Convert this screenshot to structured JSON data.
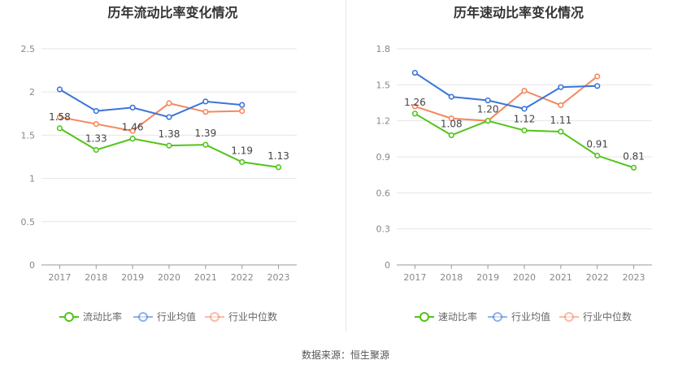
{
  "source_text": "数据来源：恒生聚源",
  "chart_data": [
    {
      "type": "line",
      "title": "历年流动比率变化情况",
      "categories": [
        "2017",
        "2018",
        "2019",
        "2020",
        "2021",
        "2022",
        "2023"
      ],
      "ylim": [
        0,
        2.5
      ],
      "yticks": [
        "0",
        "0.5",
        "1",
        "1.5",
        "2",
        "2.5"
      ],
      "grid": true,
      "legend_position": "bottom",
      "series": [
        {
          "name": "流动比率",
          "color": "#52c41a",
          "labeled": true,
          "labels": [
            "1.58",
            "1.33",
            "1.46",
            "1.38",
            "1.39",
            "1.19",
            "1.13"
          ],
          "values": [
            1.58,
            1.33,
            1.46,
            1.38,
            1.39,
            1.19,
            1.13
          ]
        },
        {
          "name": "行业均值",
          "color": "#3a75d9",
          "labeled": false,
          "values": [
            2.03,
            1.78,
            1.82,
            1.71,
            1.89,
            1.85,
            null
          ]
        },
        {
          "name": "行业中位数",
          "color": "#f5875f",
          "labeled": false,
          "values": [
            1.71,
            1.63,
            1.55,
            1.87,
            1.77,
            1.78,
            null
          ]
        }
      ]
    },
    {
      "type": "line",
      "title": "历年速动比率变化情况",
      "categories": [
        "2017",
        "2018",
        "2019",
        "2020",
        "2021",
        "2022",
        "2023"
      ],
      "ylim": [
        0,
        1.8
      ],
      "yticks": [
        "0",
        "0.3",
        "0.6",
        "0.9",
        "1.2",
        "1.5",
        "1.8"
      ],
      "grid": true,
      "legend_position": "bottom",
      "series": [
        {
          "name": "速动比率",
          "color": "#52c41a",
          "labeled": true,
          "labels": [
            "1.26",
            "1.08",
            "1.20",
            "1.12",
            "1.11",
            "0.91",
            "0.81"
          ],
          "values": [
            1.26,
            1.08,
            1.2,
            1.12,
            1.11,
            0.91,
            0.81
          ]
        },
        {
          "name": "行业均值",
          "color": "#3a75d9",
          "labeled": false,
          "values": [
            1.6,
            1.4,
            1.37,
            1.3,
            1.48,
            1.49,
            null
          ]
        },
        {
          "name": "行业中位数",
          "color": "#f5875f",
          "labeled": false,
          "values": [
            1.32,
            1.22,
            1.2,
            1.45,
            1.33,
            1.57,
            null
          ]
        }
      ]
    }
  ]
}
